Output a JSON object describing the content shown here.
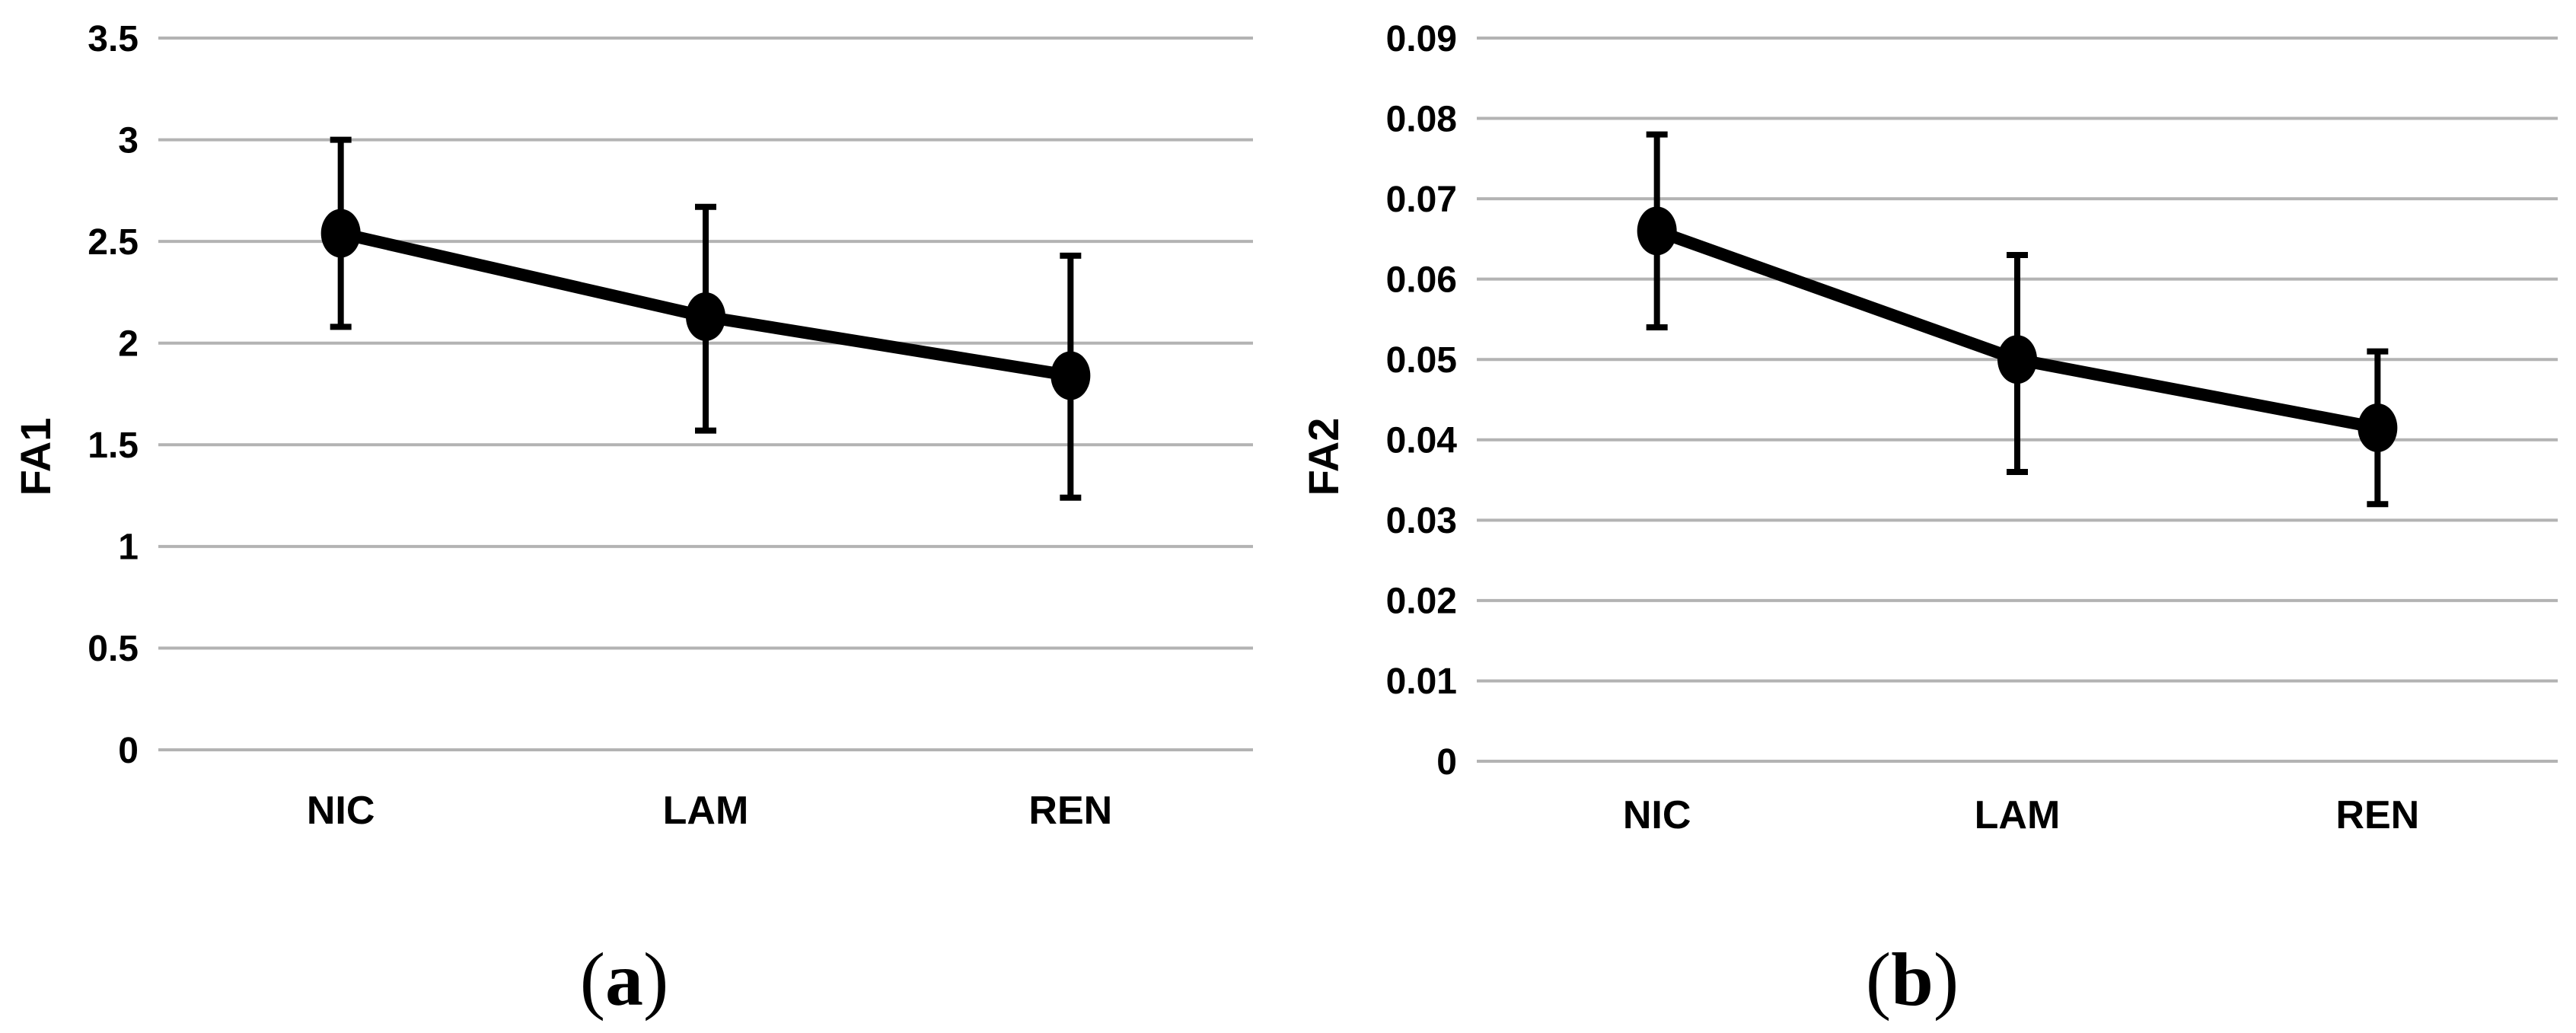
{
  "figure": {
    "background": "#ffffff",
    "gridline_color": "#b3b3b3",
    "line_color": "#000000",
    "marker_color": "#000000",
    "error_bar_color": "#000000",
    "text_color": "#000000"
  },
  "chart_data": [
    {
      "type": "line",
      "panel": "a",
      "caption": {
        "prefix": "(",
        "letter": "a",
        "suffix": ")"
      },
      "ylabel": "FA1",
      "xlabel": "",
      "categories": [
        "NIC",
        "LAM",
        "REN"
      ],
      "series": [
        {
          "name": "FA1",
          "values": [
            2.54,
            2.13,
            1.84
          ],
          "error_low": [
            2.08,
            1.57,
            1.24
          ],
          "error_high": [
            3.0,
            2.67,
            2.43
          ]
        }
      ],
      "ylim": [
        0,
        3.5
      ],
      "yticks": [
        {
          "value": 3.5,
          "label": "3.5"
        },
        {
          "value": 3,
          "label": "3"
        },
        {
          "value": 2.5,
          "label": "2.5"
        },
        {
          "value": 2,
          "label": "2"
        },
        {
          "value": 1.5,
          "label": "1.5"
        },
        {
          "value": 1,
          "label": "1"
        },
        {
          "value": 0.5,
          "label": "0.5"
        },
        {
          "value": 0,
          "label": "0"
        }
      ],
      "grid": true,
      "legend": "none",
      "marker": "filled-ellipse"
    },
    {
      "type": "line",
      "panel": "b",
      "caption": {
        "prefix": "(",
        "letter": "b",
        "suffix": ")"
      },
      "ylabel": "FA2",
      "xlabel": "",
      "categories": [
        "NIC",
        "LAM",
        "REN"
      ],
      "series": [
        {
          "name": "FA2",
          "values": [
            0.066,
            0.05,
            0.0415
          ],
          "error_low": [
            0.054,
            0.036,
            0.032
          ],
          "error_high": [
            0.078,
            0.063,
            0.051
          ]
        }
      ],
      "ylim": [
        0,
        0.09
      ],
      "yticks": [
        {
          "value": 0.09,
          "label": "0.09"
        },
        {
          "value": 0.08,
          "label": "0.08"
        },
        {
          "value": 0.07,
          "label": "0.07"
        },
        {
          "value": 0.06,
          "label": "0.06"
        },
        {
          "value": 0.05,
          "label": "0.05"
        },
        {
          "value": 0.04,
          "label": "0.04"
        },
        {
          "value": 0.03,
          "label": "0.03"
        },
        {
          "value": 0.02,
          "label": "0.02"
        },
        {
          "value": 0.01,
          "label": "0.01"
        },
        {
          "value": 0,
          "label": "0"
        }
      ],
      "grid": true,
      "legend": "none",
      "marker": "filled-ellipse"
    }
  ]
}
